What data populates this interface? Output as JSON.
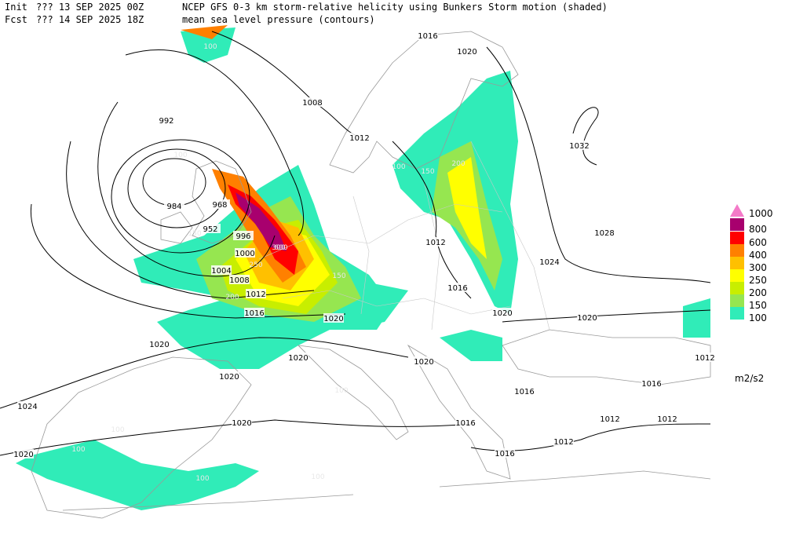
{
  "header": {
    "init_label": "Init",
    "init_time": "??? 13 SEP 2025 00Z",
    "fcst_label": "Fcst",
    "fcst_time": "??? 14 SEP 2025 18Z",
    "shaded_title": "NCEP GFS 0-3 km storm-relative helicity using Bunkers Storm motion (shaded)",
    "contour_title": "mean sea level pressure (contours)"
  },
  "legend": {
    "unit": "m2/s2",
    "levels": [
      {
        "value": 1000,
        "color": "#f47ac8"
      },
      {
        "value": 800,
        "color": "#a8006e"
      },
      {
        "value": 600,
        "color": "#ff0000"
      },
      {
        "value": 400,
        "color": "#ff8000"
      },
      {
        "value": 300,
        "color": "#ffc000"
      },
      {
        "value": 250,
        "color": "#ffff00"
      },
      {
        "value": 200,
        "color": "#c8ee00"
      },
      {
        "value": 150,
        "color": "#96e650"
      },
      {
        "value": 100,
        "color": "#30ecb8"
      }
    ]
  },
  "contour_labels": [
    "1016",
    "1020",
    "1008",
    "1012",
    "992",
    "1032",
    "984",
    "968",
    "952",
    "996",
    "1000",
    "1004",
    "1008",
    "1012",
    "1016",
    "1012",
    "1028",
    "1024",
    "1016",
    "1020",
    "1020",
    "1020",
    "1020",
    "1020",
    "1020",
    "1020",
    "1024",
    "1020",
    "1016",
    "1016",
    "1012",
    "1012",
    "1012",
    "1016",
    "1016",
    "1012",
    "1020"
  ],
  "shade_labels": [
    "100",
    "100",
    "150",
    "200",
    "250",
    "300",
    "600",
    "150",
    "200",
    "100",
    "150",
    "100",
    "100",
    "100",
    "100",
    "100"
  ]
}
